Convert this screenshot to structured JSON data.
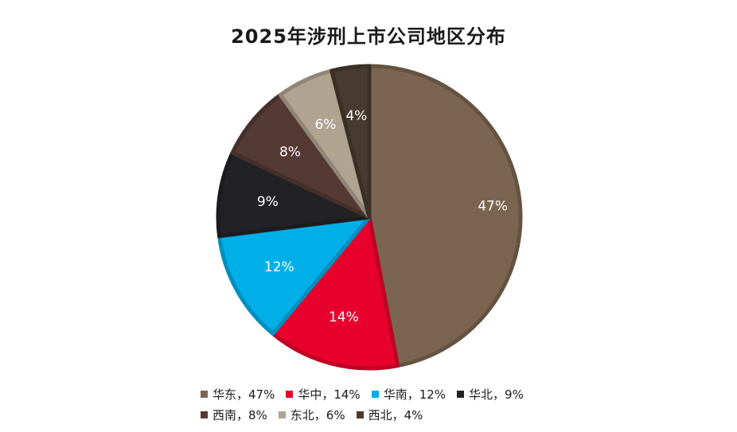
{
  "chart_data": {
    "type": "pie",
    "title": "2025年涉刑上市公司地区分布",
    "slices": [
      {
        "name": "华东",
        "value": 47,
        "label": "47%",
        "legend": "华东，47%",
        "color": "#7b6550"
      },
      {
        "name": "华中",
        "value": 14,
        "label": "14%",
        "legend": "华中，14%",
        "color": "#e8002d"
      },
      {
        "name": "华南",
        "value": 12,
        "label": "12%",
        "legend": "华南，12%",
        "color": "#00aee8"
      },
      {
        "name": "华北",
        "value": 9,
        "label": "9%",
        "legend": "华北，9%",
        "color": "#222226"
      },
      {
        "name": "西南",
        "value": 8,
        "label": "8%",
        "legend": "西南，8%",
        "color": "#553935"
      },
      {
        "name": "东北",
        "value": 6,
        "label": "6%",
        "legend": "东北，6%",
        "color": "#b0a491"
      },
      {
        "name": "西北",
        "value": 4,
        "label": "4%",
        "legend": "西北，4%",
        "color": "#473a2e"
      }
    ],
    "legend_placement": "bottom"
  }
}
